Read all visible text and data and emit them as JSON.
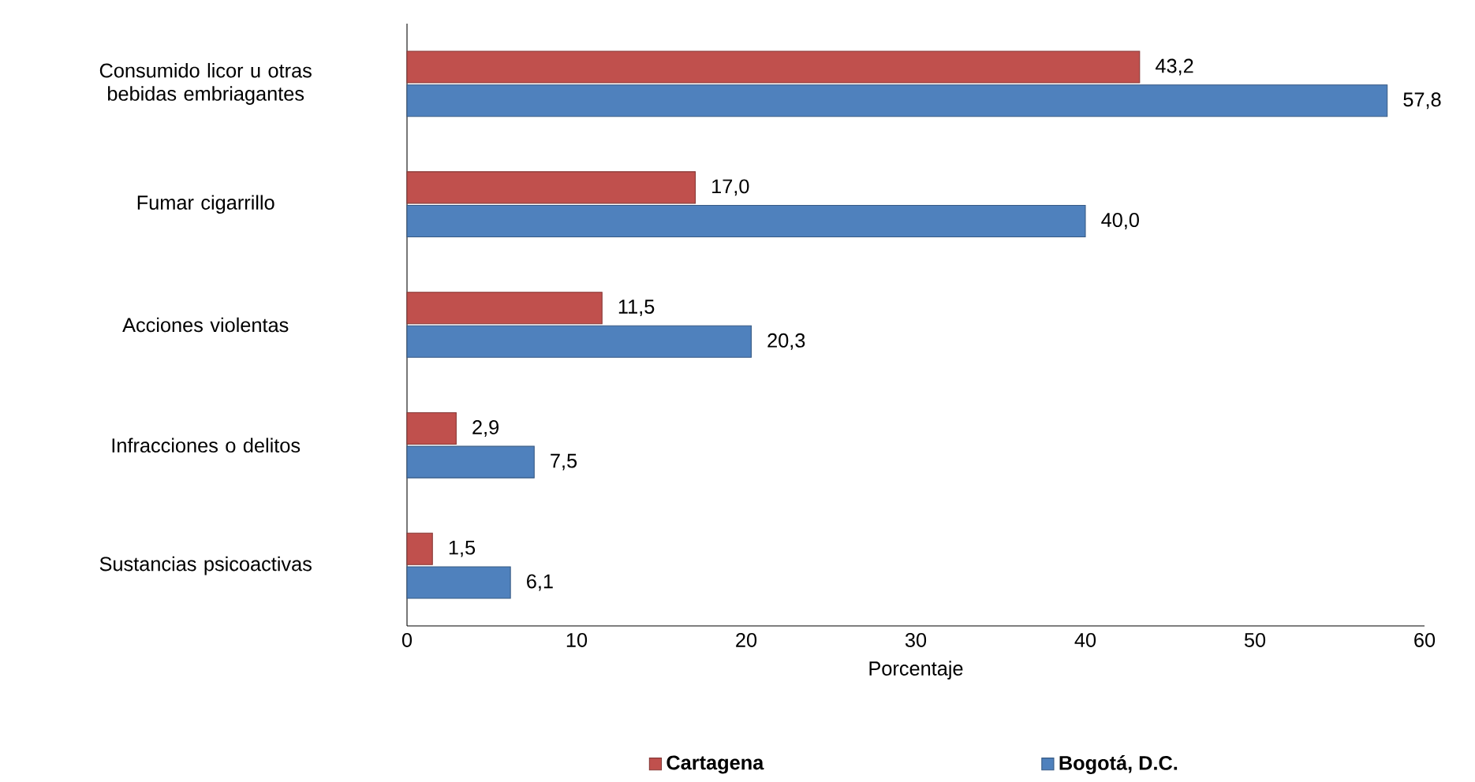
{
  "chart_data": {
    "type": "bar",
    "orientation": "horizontal",
    "xlabel": "Porcentaje",
    "categories": [
      "Consumido licor u otras bebidas embriagantes",
      "Fumar cigarrillo",
      "Acciones violentas",
      "Infracciones o delitos",
      "Sustancias psicoactivas"
    ],
    "series": [
      {
        "name": "Cartagena",
        "color": "#c0504d",
        "values": [
          43.2,
          17.0,
          11.5,
          2.9,
          1.5
        ],
        "value_labels": [
          "43,2",
          "17,0",
          "11,5",
          "2,9",
          "1,5"
        ]
      },
      {
        "name": "Bogotá, D.C.",
        "color": "#4f81bd",
        "values": [
          57.8,
          40.0,
          20.3,
          7.5,
          6.1
        ],
        "value_labels": [
          "57,8",
          "40,0",
          "20,3",
          "7,5",
          "6,1"
        ]
      }
    ],
    "xlim": [
      0,
      60
    ],
    "xticks": [
      0,
      10,
      20,
      30,
      40,
      50,
      60
    ],
    "legend": "bottom"
  }
}
